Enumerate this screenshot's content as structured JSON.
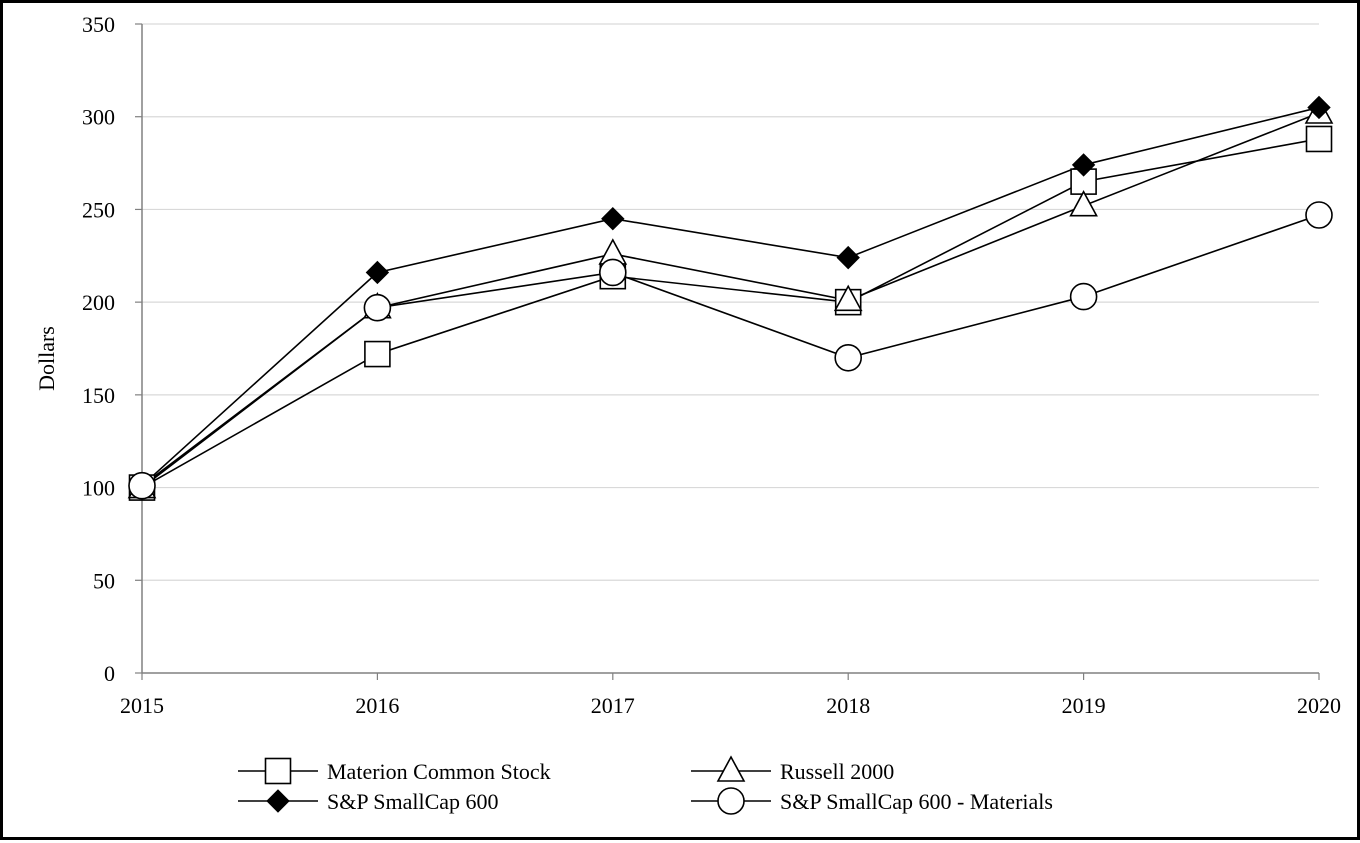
{
  "chart_data": {
    "type": "line",
    "title": "",
    "xlabel": "",
    "ylabel": "Dollars",
    "x": [
      "2015",
      "2016",
      "2017",
      "2018",
      "2019",
      "2020"
    ],
    "ylim": [
      0,
      350
    ],
    "yticks": [
      0,
      50,
      100,
      150,
      200,
      250,
      300,
      350
    ],
    "grid": "horizontal",
    "legend_position": "bottom",
    "series": [
      {
        "name": "Materion Common Stock",
        "marker": "square-open",
        "values": [
          100,
          172,
          214,
          200,
          265,
          288
        ]
      },
      {
        "name": "Russell 2000",
        "marker": "triangle-open",
        "values": [
          100,
          197,
          226,
          201,
          252,
          302
        ]
      },
      {
        "name": "S&P SmallCap 600",
        "marker": "diamond-filled",
        "values": [
          101,
          216,
          245,
          224,
          274,
          305
        ]
      },
      {
        "name": "S&P SmallCap 600 - Materials",
        "marker": "circle-open",
        "values": [
          101,
          197,
          216,
          170,
          203,
          247
        ]
      }
    ],
    "colors": {
      "line": "#000000",
      "grid": "#d9d9d9",
      "axis": "#808080"
    }
  }
}
